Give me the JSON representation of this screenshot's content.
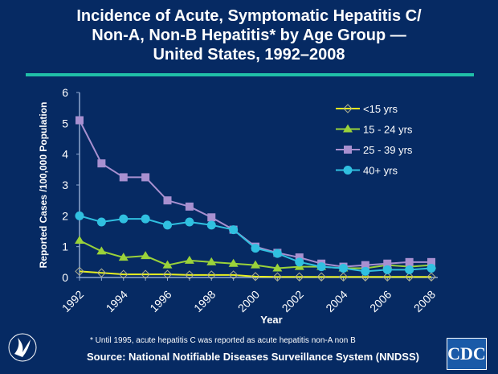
{
  "title_lines": [
    "Incidence of Acute, Symptomatic Hepatitis C/",
    "Non-A, Non-B Hepatitis* by Age Group —",
    "United States, 1992–2008"
  ],
  "footnote": "* Until 1995, acute hepatitis C was reported as acute hepatitis non-A non B",
  "source": "Source: National Notifiable Diseases Surveillance System (NNDSS)",
  "logo_text": "CDC",
  "chart_data": {
    "type": "line",
    "title": "Incidence of Acute, Symptomatic Hepatitis C/ Non-A, Non-B Hepatitis* by Age Group — United States, 1992–2008",
    "xlabel": "Year",
    "ylabel": "Reported Cases /100,000 Population",
    "ylim": [
      0,
      6
    ],
    "yticks": [
      "0",
      "1",
      "2",
      "3",
      "4",
      "5",
      "6"
    ],
    "xticks": [
      "1992",
      "1994",
      "1996",
      "1998",
      "2000",
      "2002",
      "2004",
      "2006",
      "2008"
    ],
    "x": [
      1992,
      1993,
      1994,
      1995,
      1996,
      1997,
      1998,
      1999,
      2000,
      2001,
      2002,
      2003,
      2004,
      2005,
      2006,
      2007,
      2008
    ],
    "legend_position": "right",
    "grid": false,
    "series": [
      {
        "name": "<15 yrs",
        "marker": "diamond",
        "color": "#e8f020",
        "values": [
          0.2,
          0.15,
          0.1,
          0.1,
          0.1,
          0.08,
          0.08,
          0.08,
          0.03,
          0.02,
          0.02,
          0.02,
          0.02,
          0.02,
          0.02,
          0.02,
          0.02
        ]
      },
      {
        "name": "15 - 24 yrs",
        "marker": "triangle",
        "color": "#9ad23a",
        "values": [
          1.2,
          0.85,
          0.65,
          0.7,
          0.4,
          0.55,
          0.5,
          0.45,
          0.4,
          0.3,
          0.35,
          0.35,
          0.3,
          0.3,
          0.4,
          0.35,
          0.4
        ]
      },
      {
        "name": "25 - 39 yrs",
        "marker": "square",
        "color": "#a890d0",
        "values": [
          5.1,
          3.7,
          3.25,
          3.25,
          2.5,
          2.3,
          1.95,
          1.55,
          1.0,
          0.8,
          0.65,
          0.45,
          0.35,
          0.4,
          0.45,
          0.5,
          0.5
        ]
      },
      {
        "name": "40+ yrs",
        "marker": "circle",
        "color": "#30c0e0",
        "values": [
          2.0,
          1.8,
          1.9,
          1.9,
          1.7,
          1.8,
          1.7,
          1.55,
          0.95,
          0.78,
          0.5,
          0.35,
          0.3,
          0.2,
          0.25,
          0.25,
          0.3
        ]
      }
    ]
  }
}
